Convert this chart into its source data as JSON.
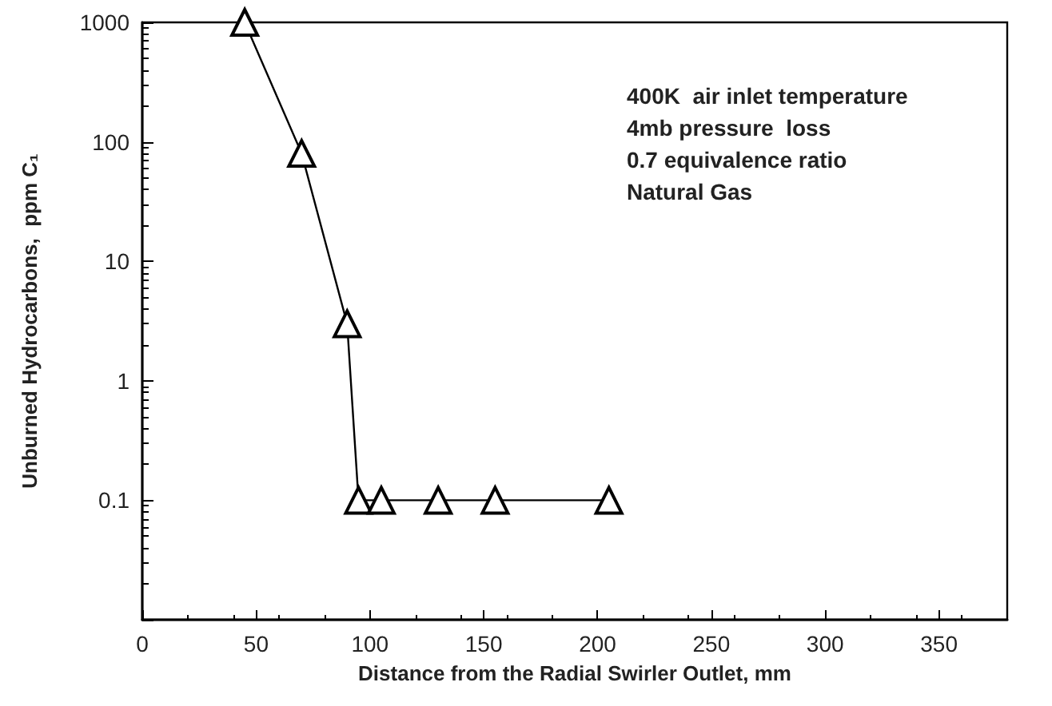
{
  "chart_data": {
    "type": "line",
    "xlabel": "Distance from the Radial Swirler Outlet, mm",
    "ylabel": "Unburned Hydrocarbons,  ppm C₁",
    "x": [
      45,
      70,
      90,
      95,
      105,
      130,
      155,
      205
    ],
    "series": [
      {
        "color": "#000000",
        "values": [
          1000,
          80,
          3,
          0.1,
          0.1,
          0.1,
          0.1,
          0.1
        ]
      }
    ],
    "xlim": [
      0,
      380
    ],
    "xticks": [
      0,
      50,
      100,
      150,
      200,
      250,
      300,
      350
    ],
    "ylim": [
      0.01,
      1000
    ],
    "yticks": [
      {
        "value": 0.01,
        "label": null
      },
      0.1,
      1,
      10,
      100,
      1000
    ],
    "log": "y",
    "grid": false,
    "marker": "triangle",
    "line_style": "solid",
    "annotations": [
      "400K  air inlet temperature",
      "4mb pressure  loss",
      "0.7 equivalence ratio",
      "Natural Gas"
    ]
  }
}
